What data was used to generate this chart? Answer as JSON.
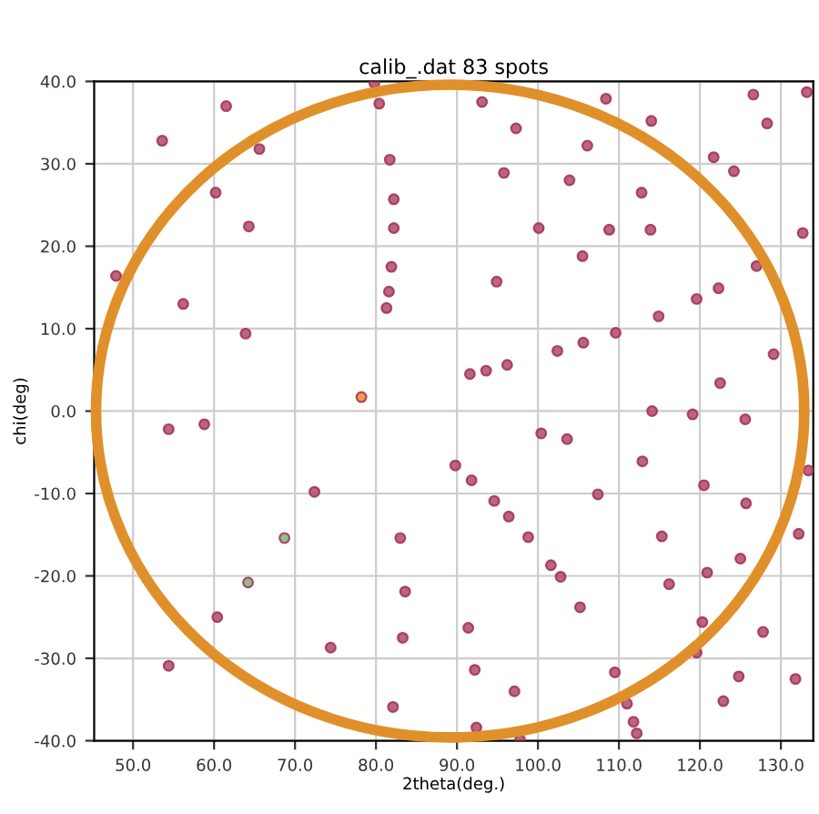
{
  "chart_data": {
    "type": "scatter",
    "title": "calib_.dat 83 spots",
    "xlabel": "2theta(deg.)",
    "ylabel": "chi(deg)",
    "xlim": [
      45.2,
      134
    ],
    "ylim": [
      -40,
      40
    ],
    "xticks": [
      {
        "value": 50,
        "label": "50.0"
      },
      {
        "value": 60,
        "label": "60.0"
      },
      {
        "value": 70,
        "label": "70.0"
      },
      {
        "value": 80,
        "label": "80.0"
      },
      {
        "value": 90,
        "label": "90.0"
      },
      {
        "value": 100,
        "label": "100.0"
      },
      {
        "value": 110,
        "label": "110.0"
      },
      {
        "value": 120,
        "label": "120.0"
      },
      {
        "value": 130,
        "label": "130.0"
      }
    ],
    "yticks": [
      {
        "value": -40,
        "label": "-40.0"
      },
      {
        "value": -30,
        "label": "-30.0"
      },
      {
        "value": -20,
        "label": "-20.0"
      },
      {
        "value": -10,
        "label": "-10.0"
      },
      {
        "value": 0,
        "label": "0.0"
      },
      {
        "value": 10,
        "label": "10.0"
      },
      {
        "value": 20,
        "label": "20.0"
      },
      {
        "value": 30,
        "label": "30.0"
      },
      {
        "value": 40,
        "label": "40.0"
      }
    ],
    "grid": true,
    "marker": "circle",
    "series": [
      {
        "color": "#b04a68",
        "x": [
          61.5,
          53.6,
          65.6,
          60.2,
          64.3,
          47.9,
          56.2,
          63.9,
          79.8,
          80.4,
          81.7,
          82.2,
          82.2,
          81.9,
          81.6,
          81.3,
          93.1,
          108.4,
          114.0,
          126.6,
          133.2,
          97.3,
          106.1,
          128.3,
          121.7,
          124.2,
          95.8,
          103.9,
          112.8,
          100.1,
          108.8,
          113.9,
          132.7,
          105.5,
          127.0,
          94.9,
          122.3,
          119.6,
          114.9,
          109.6,
          105.6,
          102.4,
          129.1,
          96.2,
          93.6,
          91.6,
          122.5,
          114.1,
          119.1,
          125.6,
          54.4,
          58.8,
          72.4,
          83.0,
          83.6,
          60.4,
          83.3,
          74.4,
          54.4,
          82.1,
          89.8,
          91.8,
          100.4,
          103.6,
          112.9,
          94.6,
          96.4,
          98.8,
          107.4,
          120.5,
          125.7,
          133.4,
          115.3,
          132.2,
          101.6,
          102.8,
          120.9,
          125.0,
          116.2,
          105.2,
          91.4,
          120.3,
          127.8,
          119.6,
          92.2,
          109.5,
          124.8,
          131.8,
          97.1,
          111.0,
          122.9,
          111.8,
          112.2,
          92.4,
          97.8
        ],
        "values": [
          37.0,
          32.8,
          31.8,
          26.5,
          22.4,
          16.4,
          13.0,
          9.4,
          39.8,
          37.3,
          30.5,
          25.7,
          22.2,
          17.5,
          14.5,
          12.5,
          37.5,
          37.9,
          35.2,
          38.4,
          38.7,
          34.3,
          32.2,
          34.9,
          30.8,
          29.1,
          28.9,
          28.0,
          26.5,
          22.2,
          22.0,
          22.0,
          21.6,
          18.8,
          17.6,
          15.7,
          14.9,
          13.6,
          11.5,
          9.5,
          8.3,
          7.3,
          6.9,
          5.6,
          4.9,
          4.5,
          3.4,
          0.0,
          -0.4,
          -1.0,
          -2.2,
          -1.6,
          -9.8,
          -15.4,
          -21.9,
          -25.0,
          -27.5,
          -28.7,
          -30.9,
          -35.9,
          -6.6,
          -8.4,
          -2.7,
          -3.4,
          -6.1,
          -10.9,
          -12.8,
          -15.3,
          -10.1,
          -9.0,
          -11.2,
          -7.2,
          -15.2,
          -14.9,
          -18.7,
          -20.1,
          -19.6,
          -17.9,
          -21.0,
          -23.8,
          -26.3,
          -25.6,
          -26.8,
          -29.3,
          -31.4,
          -31.7,
          -32.2,
          -32.5,
          -34.0,
          -35.5,
          -35.2,
          -37.7,
          -39.1,
          -38.4,
          -39.9
        ]
      },
      {
        "color": "#f08a2c",
        "x": [
          78.2
        ],
        "values": [
          1.7
        ]
      },
      {
        "color": "#7fb27a",
        "x": [
          68.7,
          64.2
        ],
        "values": [
          -15.4,
          -20.8
        ]
      }
    ]
  }
}
